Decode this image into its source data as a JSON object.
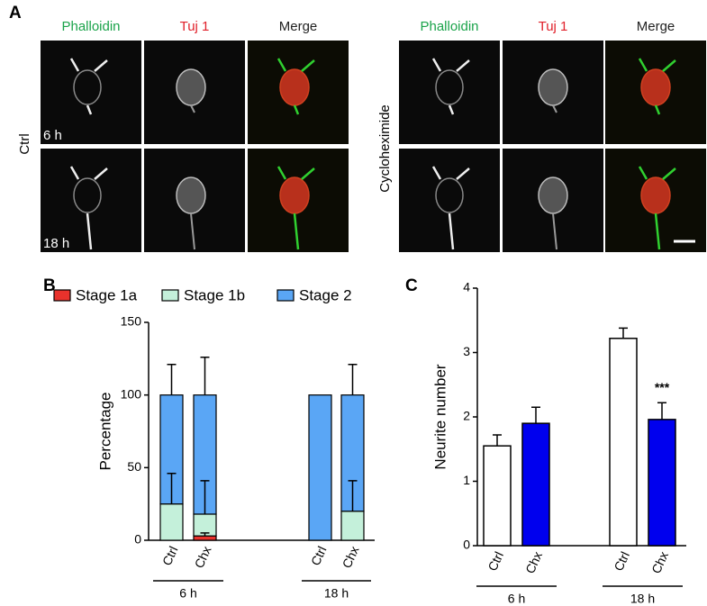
{
  "figure": {
    "panels": [
      "A",
      "B",
      "C"
    ],
    "columns": [
      {
        "text": "Phalloidin",
        "color": "#1aa34a"
      },
      {
        "text": "Tuj 1",
        "color": "#e0202a"
      },
      {
        "text": "Merge",
        "color": "#222222"
      }
    ],
    "conditions": [
      "Ctrl",
      "Cycloheximide"
    ],
    "times": [
      "6 h",
      "18 h"
    ]
  },
  "chart_data": [
    {
      "type": "stacked-bar",
      "ylabel": "Percentage",
      "categories": [
        "Ctrl",
        "Chx",
        "Ctrl",
        "Chx"
      ],
      "groups": [
        "6 h",
        "18 h"
      ],
      "series": [
        {
          "name": "Stage 1a",
          "color": "#e8322c",
          "values": [
            0,
            3,
            0,
            0
          ],
          "errors": [
            null,
            2,
            null,
            null
          ]
        },
        {
          "name": "Stage 1b",
          "color": "#c4f0da",
          "values": [
            25,
            15,
            0,
            20
          ],
          "errors": [
            21,
            23,
            null,
            21
          ]
        },
        {
          "name": "Stage 2",
          "color": "#5aa6f5",
          "values": [
            75,
            82,
            100,
            80
          ],
          "errors": [
            21,
            26,
            null,
            21
          ]
        }
      ],
      "ylim": [
        0,
        150
      ],
      "yticks": [
        0,
        50,
        100,
        150
      ]
    },
    {
      "type": "bar",
      "ylabel": "Neurite number",
      "categories": [
        "Ctrl",
        "Chx",
        "Ctrl",
        "Chx"
      ],
      "groups": [
        "6 h",
        "18 h"
      ],
      "values": [
        1.55,
        1.9,
        3.22,
        1.96
      ],
      "errors": [
        0.17,
        0.25,
        0.16,
        0.26
      ],
      "colors": [
        "#ffffff",
        "#0000ee",
        "#ffffff",
        "#0000ee"
      ],
      "annotations": [
        {
          "text": "***",
          "index": 3
        }
      ],
      "ylim": [
        0,
        4
      ],
      "yticks": [
        0,
        1,
        2,
        3,
        4
      ]
    }
  ]
}
